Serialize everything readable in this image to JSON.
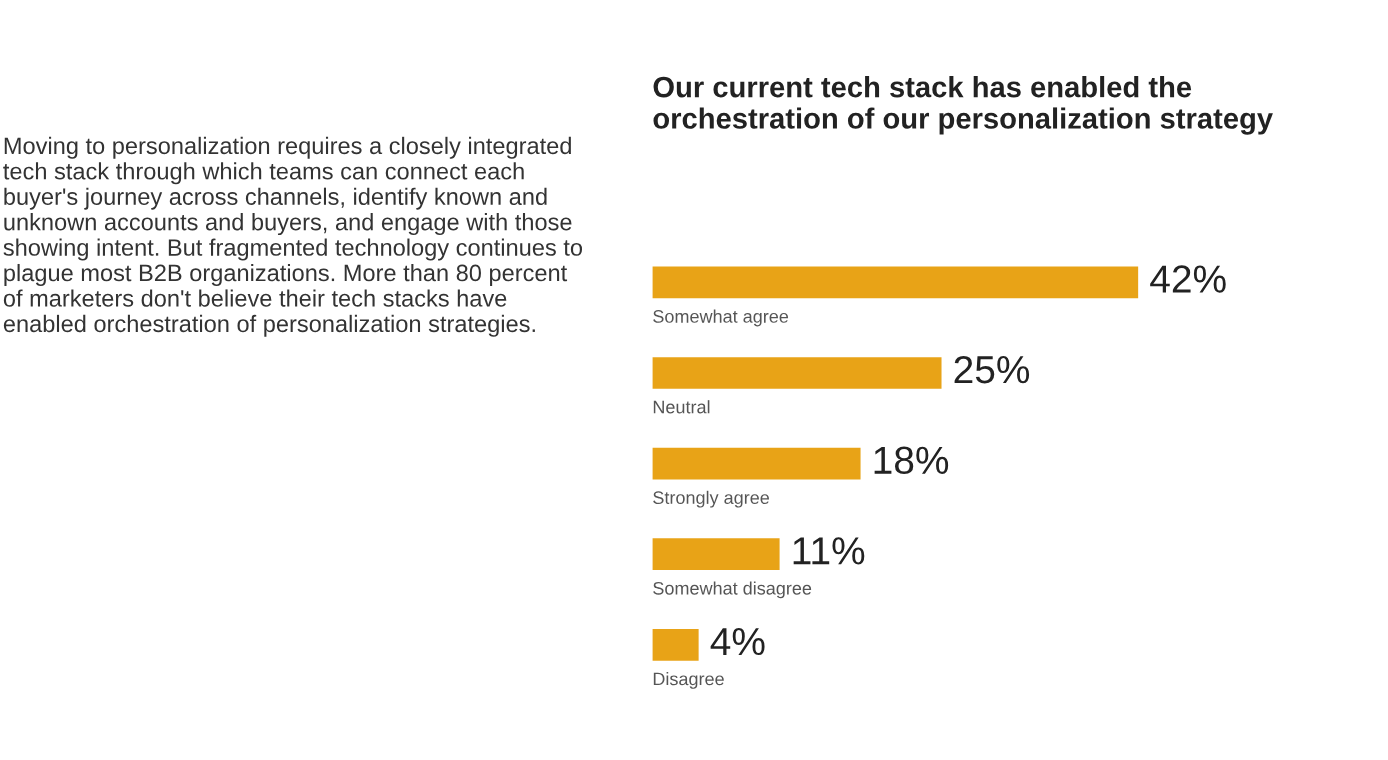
{
  "chart_data": {
    "type": "bar",
    "orientation": "horizontal",
    "title": "Our current tech stack has enabled the orchestration of our personalization strategy",
    "categories": [
      "Somewhat agree",
      "Neutral",
      "Strongly agree",
      "Somewhat disagree",
      "Disagree"
    ],
    "values": [
      42,
      25,
      18,
      11,
      4
    ],
    "value_labels": [
      "42%",
      "25%",
      "18%",
      "11%",
      "4%"
    ],
    "color": "#e8a317",
    "annotations": [
      "Moving to personalization requires a closely integrated tech stack through which teams can connect each buyer's journey across channels, identify known and unknown accounts and buyers, and engage with those showing intent. But fragmented technology continues to plague most B2B organizations. More than 80 percent of marketers don't believe their tech stacks have enabled orchestration of personalization strategies."
    ]
  }
}
